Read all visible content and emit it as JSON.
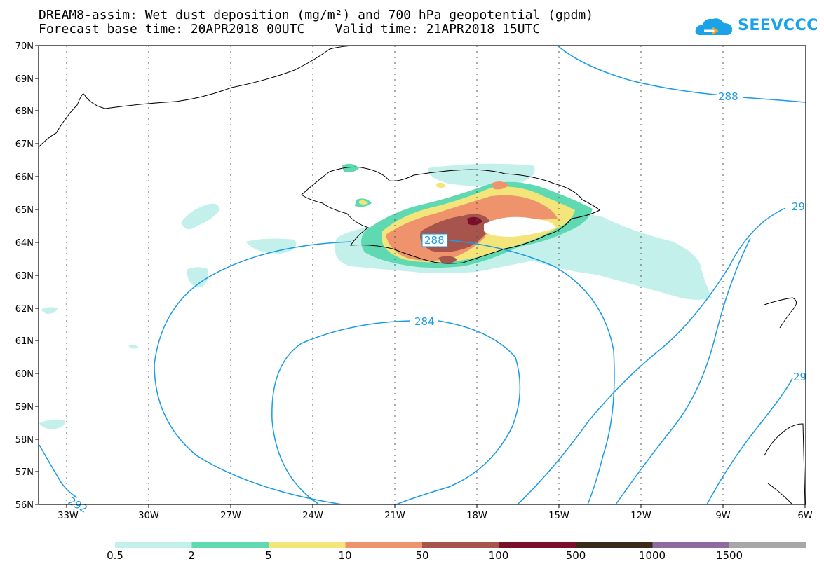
{
  "header": {
    "title_line1": "DREAM8-assim: Wet dust deposition (mg/m²) and 700 hPa geopotential (gpdm)",
    "title_line2": "Forecast base time: 20APR2018 00UTC    Valid time: 21APR2018 15UTC"
  },
  "logo": {
    "text": "SEEVCCC",
    "icon": "cloud-icon",
    "color": "#1aa3e8"
  },
  "axes": {
    "lat_labels": [
      "70N",
      "69N",
      "68N",
      "67N",
      "66N",
      "65N",
      "64N",
      "63N",
      "62N",
      "61N",
      "60N",
      "59N",
      "58N",
      "57N",
      "56N"
    ],
    "lon_labels": [
      "33W",
      "30W",
      "27W",
      "24W",
      "21W",
      "18W",
      "15W",
      "12W",
      "9W",
      "6W"
    ]
  },
  "contours": {
    "color": "#1a9be6",
    "labels": [
      "288",
      "288",
      "284",
      "292",
      "29",
      "29"
    ]
  },
  "legend": {
    "thresholds": [
      "0.5",
      "2",
      "5",
      "10",
      "50",
      "100",
      "500",
      "1000",
      "1500"
    ],
    "colors": [
      "#c3f0ea",
      "#5ed9b1",
      "#f3e57a",
      "#ef936d",
      "#a6544c",
      "#7b0f2a",
      "#3a2a1a",
      "#8e6aa0",
      "#a7a7a7"
    ]
  }
}
